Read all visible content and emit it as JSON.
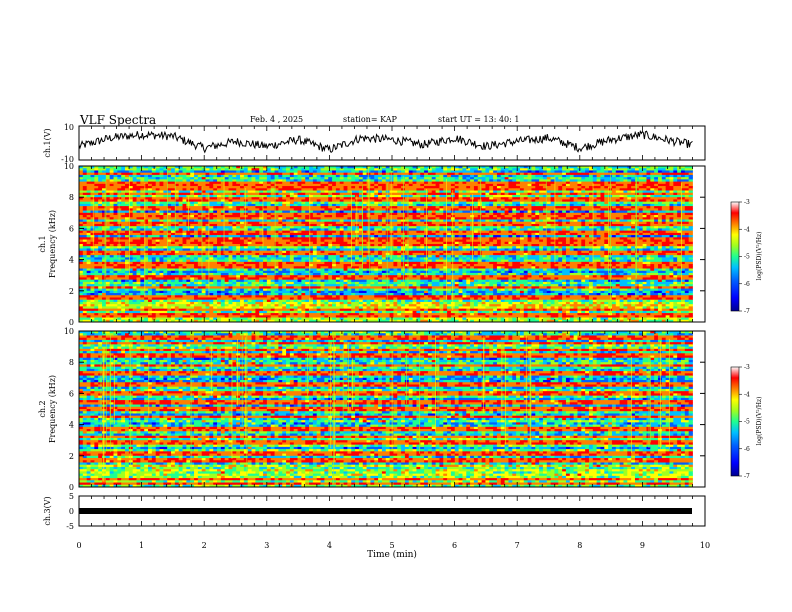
{
  "header": {
    "title": "VLF Spectra",
    "date": "Feb. 4 , 2025",
    "station": "station= KAP",
    "start": "start  UT =  13: 40: 1"
  },
  "colorbar": {
    "label": "log(PSD)(V²/Hz)",
    "ticks": [
      "-3",
      "-4",
      "-5",
      "-6",
      "-7"
    ],
    "range": [
      -7,
      -3
    ],
    "colors": [
      "#00008f",
      "#0000ff",
      "#0060ff",
      "#00c0ff",
      "#20ff90",
      "#a0ff20",
      "#ffff00",
      "#ff8000",
      "#ff0000",
      "#ffffff"
    ]
  },
  "chart_data": [
    {
      "type": "line",
      "panel": "ch1-waveform",
      "ylabel": "ch.1(V)",
      "ylim": [
        -10,
        10
      ],
      "yticks": [
        "10",
        "-10"
      ],
      "xlim": [
        0,
        10
      ],
      "description_values": "noisy waveform oscillating roughly between -6 and 7 V",
      "x": [
        0,
        0.5,
        1,
        1.5,
        2,
        2.5,
        3,
        3.5,
        4,
        4.5,
        5,
        5.5,
        6,
        6.5,
        7,
        7.5,
        8,
        8.5,
        9,
        9.5,
        9.8
      ],
      "y": [
        -2,
        3,
        5,
        4,
        -3,
        1,
        -2,
        2,
        -4,
        3,
        2,
        -1,
        3,
        -2,
        1,
        3,
        -3,
        2,
        5,
        1,
        -1
      ]
    },
    {
      "type": "heatmap",
      "panel": "ch1-spectrogram",
      "ylabel": "ch.1 Frequency (kHz)",
      "ylim": [
        0,
        10
      ],
      "yticks": [
        "0",
        "2",
        "4",
        "6",
        "8",
        "10"
      ],
      "xlim": [
        0,
        9.8
      ],
      "strong_lines_khz": [
        0.4,
        0.8,
        1.6,
        2.2,
        2.9,
        3.6,
        3.8,
        4.4,
        5.0,
        5.3,
        5.7,
        6.3,
        6.7,
        6.9,
        7.3,
        7.9,
        8.2,
        8.6,
        8.9,
        9.5
      ]
    },
    {
      "type": "heatmap",
      "panel": "ch2-spectrogram",
      "ylabel": "ch.2 Frequency (kHz)",
      "ylim": [
        0,
        10
      ],
      "yticks": [
        "0",
        "2",
        "4",
        "6",
        "8",
        "10"
      ],
      "xlim": [
        0,
        9.8
      ],
      "strong_lines_khz": [
        0.2,
        0.5,
        1.7,
        2.1,
        2.9,
        3.2,
        3.7,
        4.5,
        5.0,
        5.4,
        6.0,
        6.6,
        7.3,
        7.8,
        8.4,
        8.8,
        9.2,
        9.6
      ]
    },
    {
      "type": "line",
      "panel": "ch3-waveform",
      "ylabel": "ch.3(V)",
      "ylim": [
        -5,
        5
      ],
      "yticks": [
        "5",
        "0",
        "-5"
      ],
      "xlim": [
        0,
        10
      ],
      "x": [
        0,
        9.8
      ],
      "y": [
        0,
        0
      ]
    }
  ],
  "xaxis": {
    "label": "Time  (min)",
    "ticks": [
      "0",
      "1",
      "2",
      "3",
      "4",
      "5",
      "6",
      "7",
      "8",
      "9",
      "10"
    ]
  }
}
